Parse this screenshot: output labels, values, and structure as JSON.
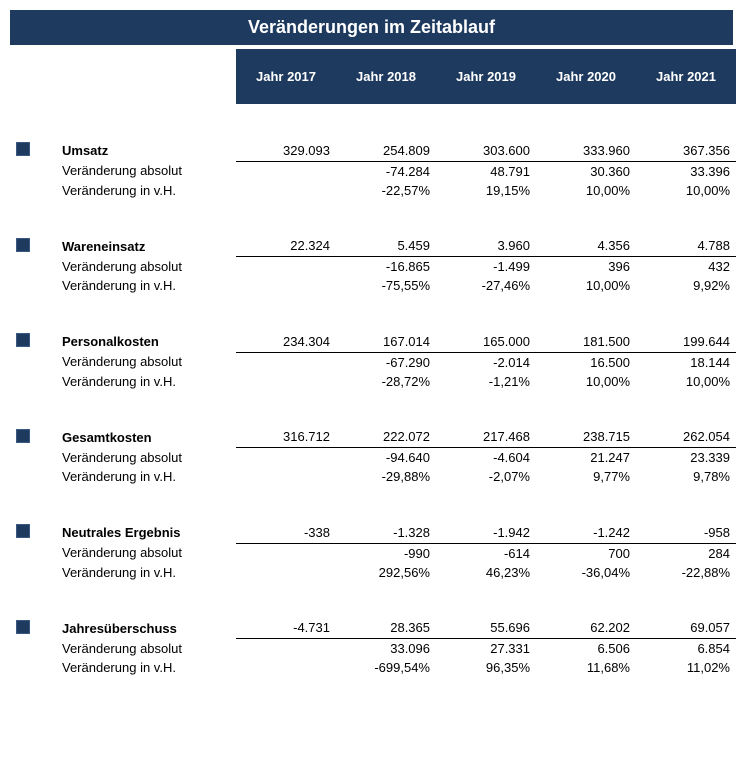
{
  "title": "Veränderungen im Zeitablauf",
  "colors": {
    "primary": "#1f3a5f",
    "text": "#000000",
    "bg": "#ffffff"
  },
  "typography": {
    "title_fontsize": 18,
    "body_fontsize": 13,
    "font_family": "Arial"
  },
  "years": [
    "Jahr 2017",
    "Jahr 2018",
    "Jahr 2019",
    "Jahr 2020",
    "Jahr 2021"
  ],
  "row_labels": {
    "abs": "Veränderung absolut",
    "pct": "Veränderung in v.H."
  },
  "sections": [
    {
      "name": "Umsatz",
      "values": [
        "329.093",
        "254.809",
        "303.600",
        "333.960",
        "367.356"
      ],
      "abs": [
        "",
        "-74.284",
        "48.791",
        "30.360",
        "33.396"
      ],
      "pct": [
        "",
        "-22,57%",
        "19,15%",
        "10,00%",
        "10,00%"
      ]
    },
    {
      "name": "Wareneinsatz",
      "values": [
        "22.324",
        "5.459",
        "3.960",
        "4.356",
        "4.788"
      ],
      "abs": [
        "",
        "-16.865",
        "-1.499",
        "396",
        "432"
      ],
      "pct": [
        "",
        "-75,55%",
        "-27,46%",
        "10,00%",
        "9,92%"
      ]
    },
    {
      "name": "Personalkosten",
      "values": [
        "234.304",
        "167.014",
        "165.000",
        "181.500",
        "199.644"
      ],
      "abs": [
        "",
        "-67.290",
        "-2.014",
        "16.500",
        "18.144"
      ],
      "pct": [
        "",
        "-28,72%",
        "-1,21%",
        "10,00%",
        "10,00%"
      ]
    },
    {
      "name": "Gesamtkosten",
      "values": [
        "316.712",
        "222.072",
        "217.468",
        "238.715",
        "262.054"
      ],
      "abs": [
        "",
        "-94.640",
        "-4.604",
        "21.247",
        "23.339"
      ],
      "pct": [
        "",
        "-29,88%",
        "-2,07%",
        "9,77%",
        "9,78%"
      ]
    },
    {
      "name": "Neutrales Ergebnis",
      "values": [
        "-338",
        "-1.328",
        "-1.942",
        "-1.242",
        "-958"
      ],
      "abs": [
        "",
        "-990",
        "-614",
        "700",
        "284"
      ],
      "pct": [
        "",
        "292,56%",
        "46,23%",
        "-36,04%",
        "-22,88%"
      ]
    },
    {
      "name": "Jahresüberschuss",
      "values": [
        "-4.731",
        "28.365",
        "55.696",
        "62.202",
        "69.057"
      ],
      "abs": [
        "",
        "33.096",
        "27.331",
        "6.506",
        "6.854"
      ],
      "pct": [
        "",
        "-699,54%",
        "96,35%",
        "11,68%",
        "11,02%"
      ]
    }
  ]
}
